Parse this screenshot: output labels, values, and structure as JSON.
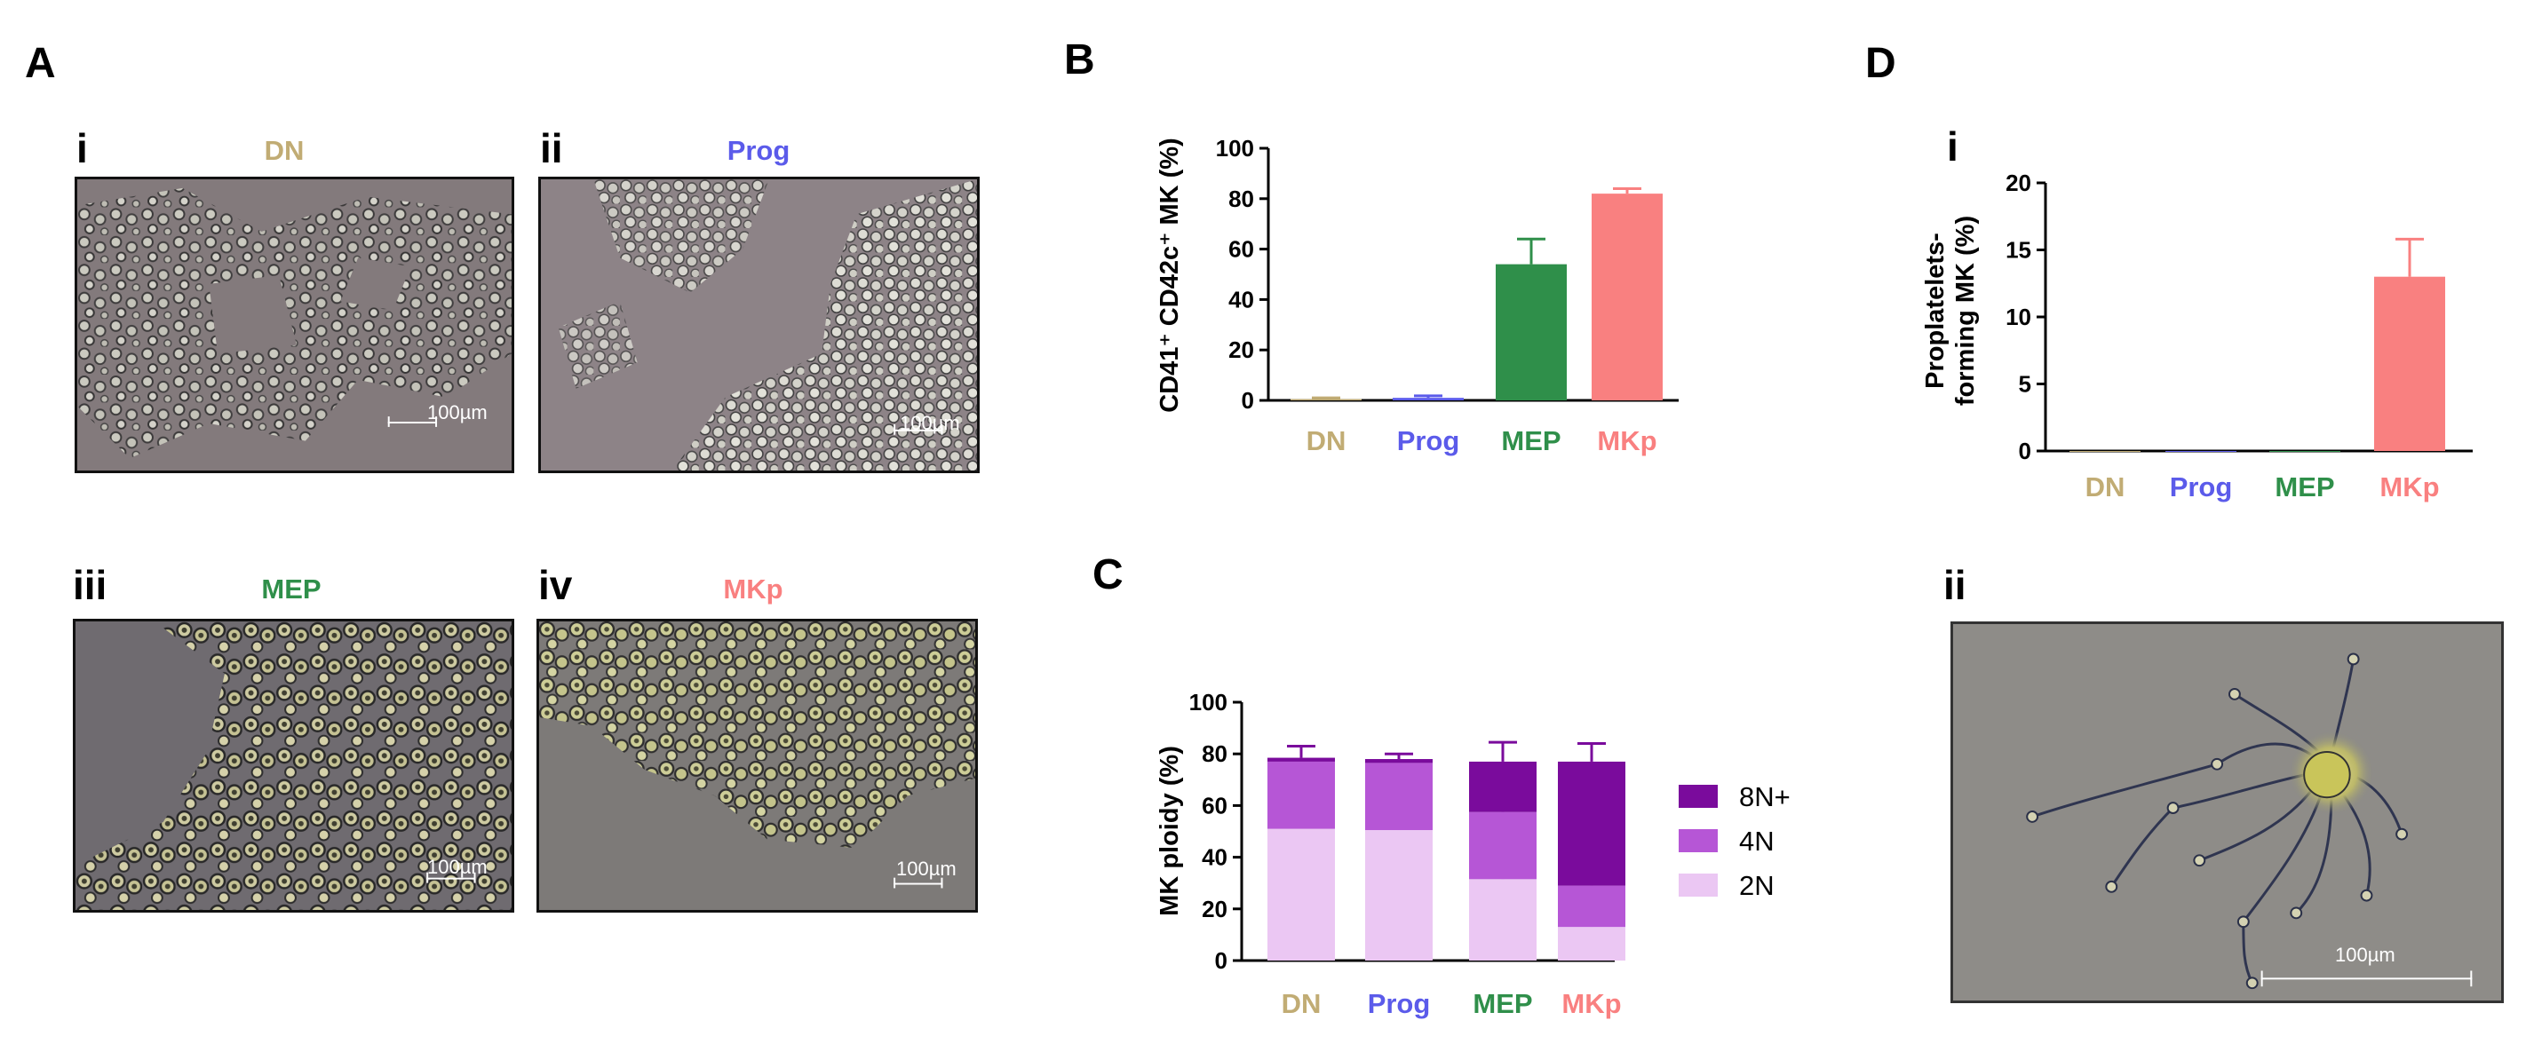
{
  "colors": {
    "DN": "#c1ac74",
    "Prog": "#5b5bea",
    "MEP": "#2f8f4a",
    "MKp": "#f98080",
    "ploidy_2N": "#ebc7f3",
    "ploidy_4N": "#b656d6",
    "ploidy_8N": "#7a0b9c"
  },
  "panel_A": {
    "letter": "A",
    "images": [
      {
        "roman": "i",
        "label": "DN",
        "scale_bar": "100µm"
      },
      {
        "roman": "ii",
        "label": "Prog",
        "scale_bar": "100µm"
      },
      {
        "roman": "iii",
        "label": "MEP",
        "scale_bar": "100µm"
      },
      {
        "roman": "iv",
        "label": "MKp",
        "scale_bar": "100µm"
      }
    ]
  },
  "panel_B": {
    "letter": "B"
  },
  "panel_C": {
    "letter": "C"
  },
  "panel_D": {
    "letter": "D",
    "roman_i": "i",
    "roman_ii": "ii",
    "image_scale_bar": "100µm"
  },
  "chart_data": [
    {
      "id": "B",
      "type": "bar",
      "categories": [
        "DN",
        "Prog",
        "MEP",
        "MKp"
      ],
      "values": [
        0.5,
        1,
        54,
        82
      ],
      "errors": [
        0.5,
        0.8,
        10,
        2
      ],
      "ylabel": "CD41⁺ CD42c⁺ MK (%)",
      "ylim": [
        0,
        100
      ],
      "yticks": [
        0,
        20,
        40,
        60,
        80,
        100
      ]
    },
    {
      "id": "C",
      "type": "bar",
      "stacked": true,
      "categories": [
        "DN",
        "Prog",
        "MEP",
        "MKp"
      ],
      "series": [
        {
          "name": "2N",
          "values": [
            51,
            50.5,
            31.5,
            13
          ],
          "errors": [
            3,
            6,
            9,
            1
          ]
        },
        {
          "name": "4N",
          "values": [
            26,
            26,
            26,
            16
          ],
          "errors": [
            0,
            0,
            2.5,
            2
          ]
        },
        {
          "name": "8N+",
          "values": [
            1.5,
            1.5,
            19.5,
            48
          ],
          "errors": [
            4.5,
            2,
            7.5,
            7
          ]
        }
      ],
      "legend": [
        "8N+",
        "4N",
        "2N"
      ],
      "ylabel": "MK ploidy (%)",
      "ylim": [
        0,
        100
      ],
      "yticks": [
        0,
        20,
        40,
        60,
        80,
        100
      ]
    },
    {
      "id": "D-i",
      "type": "bar",
      "categories": [
        "DN",
        "Prog",
        "MEP",
        "MKp"
      ],
      "values": [
        0,
        0,
        0,
        13
      ],
      "errors": [
        0,
        0,
        0,
        2.8
      ],
      "ylabel": "Proplatelets-forming MK (%)",
      "ylabel_lines": [
        "Proplatelets-",
        "forming MK (%)"
      ],
      "ylim": [
        0,
        20
      ],
      "yticks": [
        0,
        5,
        10,
        15,
        20
      ]
    }
  ]
}
